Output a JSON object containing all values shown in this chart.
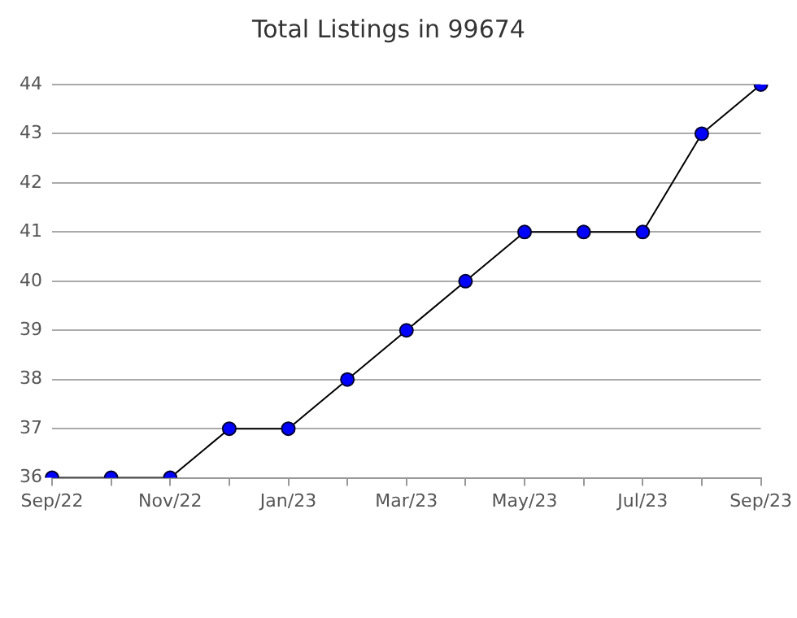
{
  "chart_data": {
    "type": "line",
    "title": "Total Listings in 99674",
    "categories": [
      "Sep/22",
      null,
      "Nov/22",
      null,
      "Jan/23",
      null,
      "Mar/23",
      null,
      "May/23",
      null,
      "Jul/23",
      null,
      "Sep/23"
    ],
    "series": [
      {
        "color": "#0000ff",
        "values": [
          36,
          36,
          36,
          37,
          37,
          38,
          39,
          40,
          41,
          41,
          41,
          43,
          44
        ]
      }
    ],
    "ylim": [
      36,
      44
    ],
    "yticks": [
      36,
      37,
      38,
      39,
      40,
      41,
      42,
      43,
      44
    ],
    "grid": "y",
    "legend": false,
    "marker": "circle",
    "line_style": "solid"
  }
}
